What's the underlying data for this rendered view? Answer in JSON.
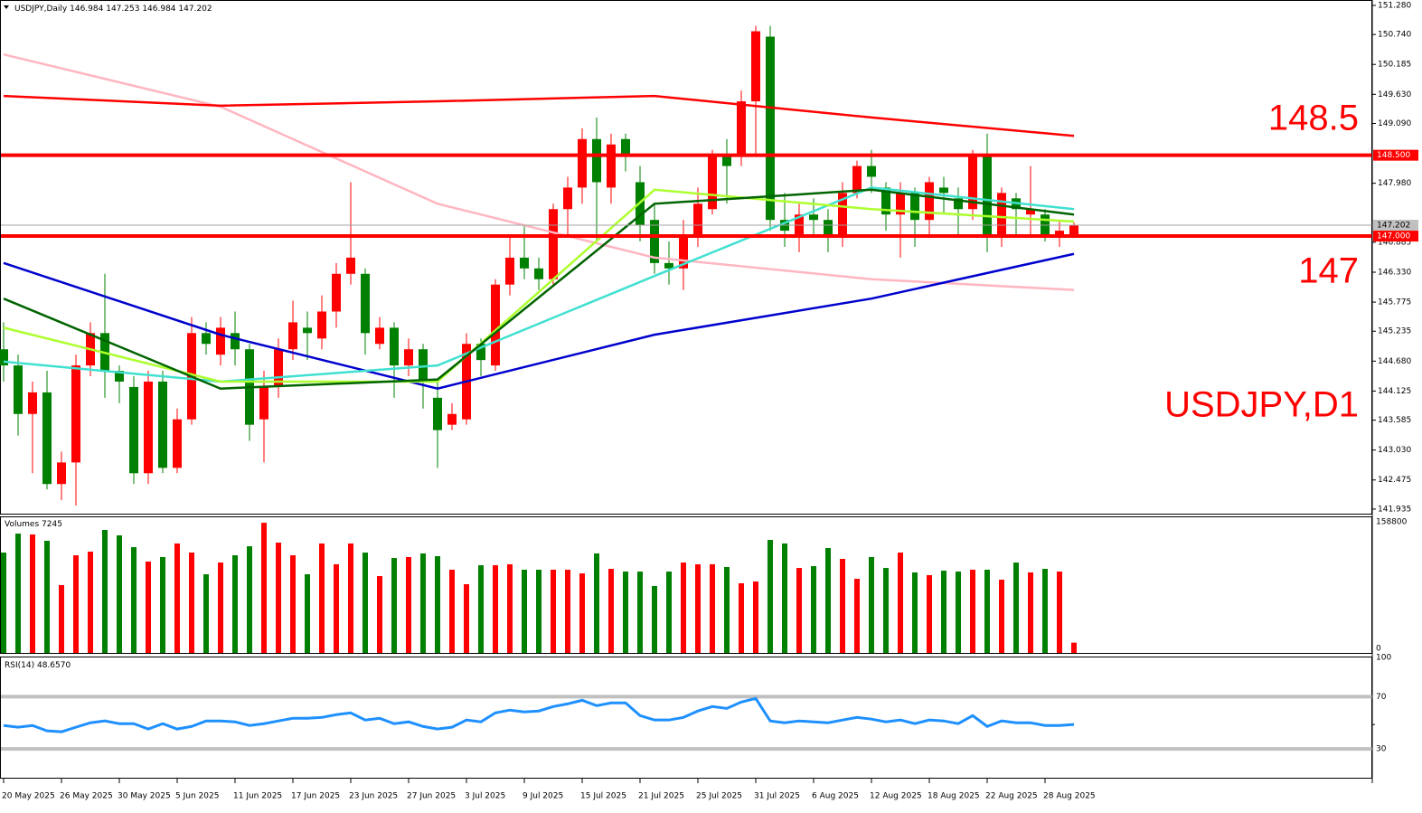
{
  "chart_data": [
    {
      "type": "candlestick",
      "title": "USDJPY,Daily",
      "last_ohlc": [
        146.984,
        147.253,
        146.984,
        147.202
      ],
      "categories": [
        "20 May 2025",
        null,
        null,
        null,
        "26 May 2025",
        null,
        null,
        null,
        "30 May 2025",
        null,
        null,
        null,
        "5 Jun 2025",
        null,
        null,
        null,
        "11 Jun 2025",
        null,
        null,
        null,
        "17 Jun 2025",
        null,
        null,
        null,
        "23 Jun 2025",
        null,
        null,
        null,
        "27 Jun 2025",
        null,
        null,
        null,
        "3 Jul 2025",
        null,
        null,
        null,
        "9 Jul 2025",
        null,
        null,
        null,
        "15 Jul 2025",
        null,
        null,
        null,
        "21 Jul 2025",
        null,
        null,
        null,
        "25 Jul 2025",
        null,
        null,
        null,
        "31 Jul 2025",
        null,
        null,
        null,
        "6 Aug 2025",
        null,
        null,
        null,
        "12 Aug 2025",
        null,
        null,
        null,
        "18 Aug 2025",
        null,
        null,
        null,
        "22 Aug 2025",
        null,
        null,
        null,
        "28 Aug 2025",
        null,
        null
      ],
      "open": [
        144.9,
        144.6,
        143.7,
        144.1,
        142.4,
        142.8,
        144.6,
        145.2,
        144.5,
        144.2,
        142.6,
        144.3,
        142.7,
        143.6,
        145.2,
        144.8,
        145.2,
        144.9,
        143.6,
        144.2,
        144.9,
        145.3,
        145.1,
        145.6,
        146.3,
        146.3,
        145.0,
        145.3,
        144.6,
        144.9,
        144.0,
        143.5,
        143.6,
        145.0,
        144.6,
        146.1,
        146.6,
        146.4,
        146.2,
        147.5,
        147.9,
        148.8,
        147.9,
        148.8,
        148.0,
        147.3,
        146.5,
        146.4,
        147.0,
        147.5,
        148.5,
        148.5,
        149.5,
        150.7,
        147.3,
        147.0,
        147.4,
        147.3,
        147.0,
        147.8,
        148.3,
        147.9,
        147.4,
        147.8,
        147.3,
        147.9,
        147.7,
        147.5,
        148.5,
        147.0,
        147.7,
        147.4,
        147.4,
        147.0,
        146.984
      ],
      "high": [
        145.4,
        144.8,
        144.3,
        144.5,
        143.0,
        144.8,
        145.4,
        146.3,
        144.6,
        144.4,
        144.5,
        144.5,
        143.8,
        145.5,
        145.4,
        145.5,
        145.6,
        145.0,
        144.5,
        145.1,
        145.8,
        145.6,
        145.9,
        146.5,
        148.0,
        146.4,
        145.5,
        145.4,
        145.1,
        145.0,
        144.3,
        143.9,
        145.2,
        145.1,
        146.2,
        147.0,
        147.2,
        146.6,
        147.6,
        148.1,
        149.0,
        149.2,
        148.9,
        148.9,
        148.3,
        147.6,
        146.9,
        147.3,
        147.9,
        148.6,
        148.8,
        149.7,
        150.9,
        150.9,
        147.8,
        147.6,
        147.7,
        147.5,
        148.0,
        148.4,
        148.6,
        148.0,
        148.0,
        147.9,
        148.1,
        148.1,
        147.9,
        148.6,
        148.9,
        147.9,
        147.8,
        148.3,
        147.5,
        147.3,
        147.253
      ],
      "low": [
        144.3,
        143.3,
        142.6,
        142.3,
        142.1,
        142.0,
        144.4,
        144.0,
        143.9,
        142.4,
        142.4,
        142.6,
        142.6,
        143.5,
        144.8,
        144.6,
        144.6,
        143.2,
        142.8,
        144.0,
        144.7,
        144.7,
        144.9,
        145.3,
        146.1,
        144.8,
        144.9,
        144.0,
        144.4,
        143.8,
        142.7,
        143.4,
        143.5,
        144.4,
        144.5,
        145.9,
        146.2,
        146.0,
        146.1,
        147.0,
        147.6,
        146.9,
        147.6,
        148.2,
        146.9,
        146.3,
        146.1,
        146.0,
        146.8,
        147.4,
        147.6,
        148.3,
        148.5,
        147.1,
        146.8,
        146.7,
        147.0,
        146.7,
        146.8,
        147.7,
        147.8,
        147.1,
        146.6,
        146.8,
        147.0,
        147.4,
        147.0,
        147.3,
        146.7,
        146.8,
        147.0,
        147.0,
        146.9,
        146.8,
        146.984
      ],
      "close": [
        144.6,
        143.7,
        144.1,
        142.4,
        142.8,
        144.6,
        145.2,
        144.5,
        144.3,
        142.6,
        144.3,
        142.7,
        143.6,
        145.2,
        145.0,
        145.3,
        144.9,
        143.5,
        144.2,
        144.9,
        145.4,
        145.2,
        145.6,
        146.3,
        146.6,
        145.2,
        145.3,
        144.6,
        144.9,
        144.3,
        143.4,
        143.7,
        145.0,
        144.7,
        146.1,
        146.6,
        146.4,
        146.2,
        147.5,
        147.9,
        148.8,
        148.0,
        148.7,
        148.5,
        147.2,
        146.5,
        146.4,
        147.0,
        147.6,
        148.5,
        148.3,
        149.5,
        150.8,
        147.3,
        147.1,
        147.4,
        147.3,
        147.0,
        147.8,
        148.3,
        148.1,
        147.4,
        147.8,
        147.3,
        148.0,
        147.8,
        147.5,
        148.5,
        147.0,
        147.8,
        147.5,
        147.5,
        147.0,
        147.1,
        147.202
      ],
      "up_color": "#ff0000",
      "down_color": "#008000",
      "moving_averages": [
        {
          "color": "#ffb6c1",
          "x": [
            0,
            15,
            30,
            45,
            60,
            74
          ],
          "values": [
            150.37,
            149.4,
            147.6,
            146.6,
            146.2,
            146.0
          ]
        },
        {
          "color": "#ff0000",
          "x": [
            0,
            15,
            30,
            45,
            60,
            74
          ],
          "values": [
            149.6,
            149.42,
            149.5,
            149.6,
            149.2,
            148.86
          ]
        },
        {
          "color": "#0000cd",
          "x": [
            0,
            15,
            30,
            45,
            60,
            74
          ],
          "values": [
            146.5,
            145.17,
            144.17,
            145.17,
            145.84,
            146.67
          ]
        },
        {
          "color": "#40e0d0",
          "x": [
            0,
            15,
            30,
            45,
            60,
            74
          ],
          "values": [
            144.67,
            144.3,
            144.6,
            146.26,
            147.9,
            147.5
          ]
        },
        {
          "color": "#adff2f",
          "x": [
            0,
            15,
            30,
            45,
            60,
            74
          ],
          "values": [
            145.3,
            144.3,
            144.3,
            147.86,
            147.5,
            147.27
          ]
        },
        {
          "color": "#006400",
          "x": [
            0,
            15,
            30,
            45,
            60,
            74
          ],
          "values": [
            145.84,
            144.17,
            144.34,
            147.6,
            147.86,
            147.4
          ]
        }
      ],
      "hlines": [
        {
          "value": 148.5,
          "label": "148.500"
        },
        {
          "value": 147,
          "label": "147.000"
        }
      ],
      "price_line": 147.202,
      "watermark": "USDJPY,D1",
      "ylim": [
        141.85,
        151.38
      ],
      "yticks": [
        {
          "value": 151.28,
          "label": "151.280"
        },
        {
          "value": 150.74,
          "label": "150.740"
        },
        150.185,
        {
          "value": 149.63,
          "label": "149.630"
        },
        {
          "value": 149.09,
          "label": "149.090"
        },
        {
          "value": 147.98,
          "label": "147.980"
        },
        146.885,
        {
          "value": 146.33,
          "label": "146.330"
        },
        145.775,
        145.235,
        {
          "value": 144.68,
          "label": "144.680"
        },
        144.125,
        143.585,
        {
          "value": 143.03,
          "label": "143.030"
        },
        142.475,
        141.935
      ]
    },
    {
      "type": "bar",
      "title": "Volumes",
      "values": [
        120200,
        144000,
        142900,
        135000,
        79400,
        116800,
        121400,
        148600,
        141800,
        127000,
        108900,
        114600,
        131600,
        120200,
        93000,
        107700,
        116800,
        128100,
        157600,
        132700,
        116800,
        93000,
        131600,
        105500,
        131600,
        120200,
        90700,
        113400,
        114600,
        119100,
        115700,
        98700,
        80500,
        104300,
        104300,
        105500,
        98700,
        98700,
        98700,
        98700,
        94100,
        119100,
        99800,
        96400,
        96400,
        78300,
        96400,
        107700,
        105500,
        105500,
        102100,
        81700,
        83900,
        136100,
        131600,
        100900,
        103200,
        125900,
        112300,
        87300,
        114600,
        100900,
        120200,
        95300,
        91900,
        97500,
        96400,
        98700,
        98700,
        86200,
        107700,
        95300,
        99800,
        96400,
        7245
      ],
      "ylim": [
        0,
        158800
      ],
      "yticks": [
        0,
        158800
      ]
    },
    {
      "type": "line",
      "title": "RSI(14)",
      "header_value": {
        "value": 48.657,
        "label": "48.6570"
      },
      "color": "#1e90ff",
      "values": [
        47.9,
        46.6,
        47.9,
        43.8,
        43.1,
        46.6,
        50.0,
        51.4,
        49.3,
        49.3,
        45.2,
        49.3,
        45.2,
        47.2,
        51.4,
        51.4,
        50.7,
        47.9,
        49.3,
        51.4,
        53.4,
        53.4,
        54.1,
        56.2,
        57.6,
        52.1,
        53.4,
        49.3,
        50.7,
        47.2,
        45.2,
        46.6,
        52.1,
        50.7,
        57.6,
        59.7,
        58.3,
        59.0,
        62.4,
        64.5,
        67.2,
        63.1,
        65.2,
        65.2,
        55.5,
        52.1,
        52.1,
        54.1,
        59.0,
        62.4,
        61.0,
        65.9,
        68.6,
        51.4,
        50.0,
        51.4,
        50.7,
        50.0,
        52.1,
        54.1,
        52.8,
        50.7,
        52.1,
        49.3,
        52.1,
        51.4,
        49.3,
        55.5,
        47.2,
        51.4,
        50.0,
        50.0,
        47.9,
        47.9,
        48.657
      ],
      "levels": [
        30,
        70
      ],
      "ylim": [
        9.3,
        100
      ],
      "yticks": [
        30,
        70,
        100
      ]
    }
  ]
}
